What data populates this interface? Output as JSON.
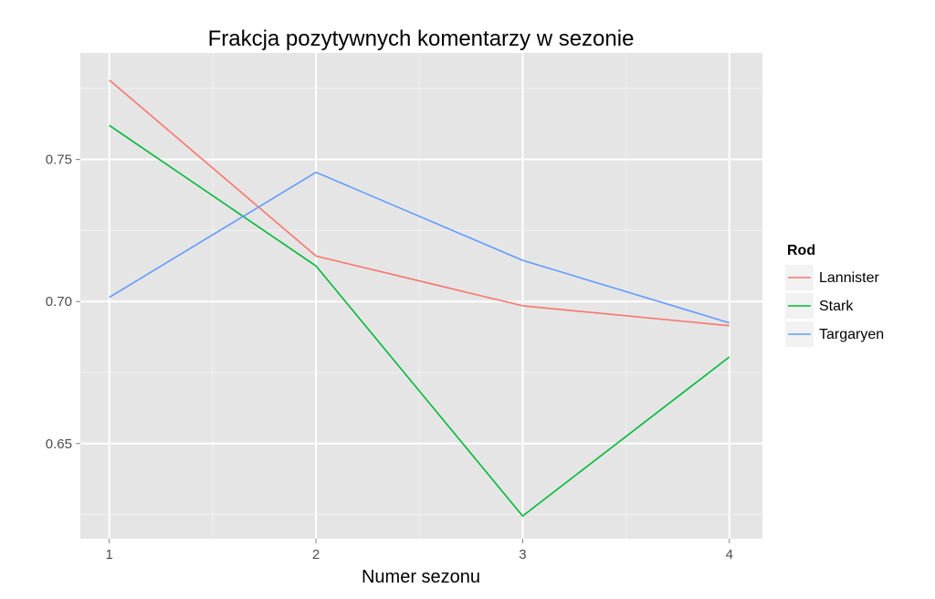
{
  "chart_data": {
    "type": "line",
    "title": "Frakcja pozytywnych komentarzy w sezonie",
    "xlabel": "Numer sezonu",
    "ylabel": "",
    "x": [
      1,
      2,
      3,
      4
    ],
    "x_tick_labels": [
      "1",
      "2",
      "3",
      "4"
    ],
    "xlim": [
      0.86,
      4.16
    ],
    "y_ticks": [
      0.65,
      0.7,
      0.75
    ],
    "y_tick_labels": [
      "0.65",
      "0.70",
      "0.75"
    ],
    "ylim": [
      0.6165,
      0.7875
    ],
    "grid": true,
    "legend": {
      "title": "Rod",
      "position": "right"
    },
    "series": [
      {
        "name": "Lannister",
        "color": "#F8766D",
        "values": [
          0.778,
          0.716,
          0.6985,
          0.6915
        ]
      },
      {
        "name": "Stark",
        "color": "#00BA38",
        "values": [
          0.762,
          0.7125,
          0.6245,
          0.6805
        ]
      },
      {
        "name": "Targaryen",
        "color": "#619CFF",
        "values": [
          0.7015,
          0.7455,
          0.7145,
          0.6925
        ]
      }
    ]
  }
}
